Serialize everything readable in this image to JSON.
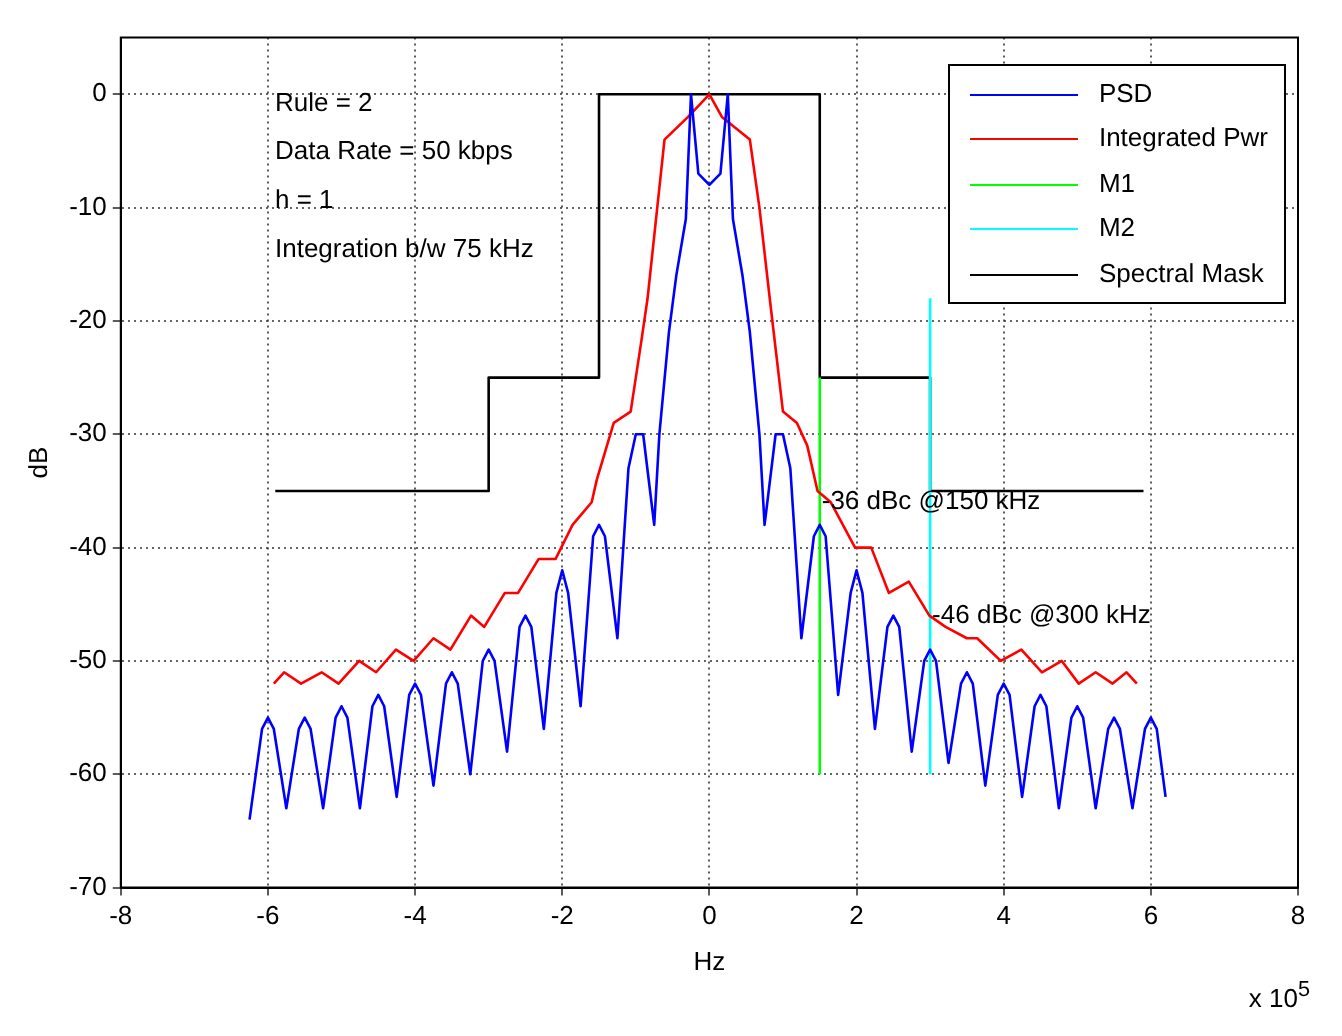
{
  "chart_data": {
    "type": "line",
    "xlabel": "Hz",
    "ylabel": "dB",
    "xlim": [
      -8,
      8
    ],
    "ylim": [
      -70,
      5
    ],
    "xticks": [
      -8,
      -6,
      -4,
      -2,
      0,
      2,
      4,
      6,
      8
    ],
    "yticks": [
      -70,
      -60,
      -50,
      -40,
      -30,
      -20,
      -10,
      0
    ],
    "grid": true,
    "legend": "top right",
    "marker": "none",
    "line_style": "solid",
    "annotations": [
      "Rule = 2",
      "Data Rate = 50 kbps",
      "h = 1",
      "Integration b/w 75 kHz",
      {
        "text": "-36 dBc @150 kHz",
        "x": 1.5,
        "y": -36
      },
      {
        "text": "-46 dBc @300 kHz",
        "x": 3,
        "y": -46
      },
      "x 10$^{5}$"
    ],
    "series": [
      {
        "name": "PSD",
        "color": "#0000ff",
        "x": [
          -6.25,
          -6.08,
          -6,
          -5.92,
          -5.75,
          -5.58,
          -5.5,
          -5.42,
          -5.25,
          -5.08,
          -5,
          -4.92,
          -4.75,
          -4.58,
          -4.5,
          -4.42,
          -4.25,
          -4.08,
          -4,
          -3.92,
          -3.75,
          -3.58,
          -3.5,
          -3.42,
          -3.25,
          -3.08,
          -3,
          -2.92,
          -2.75,
          -2.58,
          -2.5,
          -2.42,
          -2.25,
          -2.08,
          -2,
          -1.92,
          -1.75,
          -1.58,
          -1.5,
          -1.42,
          -1.25,
          -1.1,
          -1,
          -0.9,
          -0.75,
          -0.68,
          -0.55,
          -0.45,
          -0.32,
          -0.25,
          -0.15,
          0,
          0.15,
          0.25,
          0.32,
          0.45,
          0.55,
          0.68,
          0.75,
          0.9,
          1,
          1.1,
          1.25,
          1.42,
          1.5,
          1.58,
          1.75,
          1.92,
          2,
          2.08,
          2.25,
          2.42,
          2.5,
          2.58,
          2.75,
          2.92,
          3,
          3.08,
          3.25,
          3.42,
          3.5,
          3.58,
          3.75,
          3.92,
          4,
          4.08,
          4.25,
          4.42,
          4.5,
          4.58,
          4.75,
          4.92,
          5,
          5.08,
          5.25,
          5.42,
          5.5,
          5.58,
          5.75,
          5.92,
          6,
          6.08,
          6.2
        ],
        "values": [
          -64,
          -56,
          -55,
          -56,
          -63,
          -56,
          -55,
          -56,
          -63,
          -55,
          -54,
          -55,
          -63,
          -54,
          -53,
          -54,
          -62,
          -53,
          -52,
          -53,
          -61,
          -52,
          -51,
          -52,
          -60,
          -50,
          -49,
          -50,
          -58,
          -47,
          -46,
          -47,
          -56,
          -44,
          -42,
          -44,
          -54,
          -39,
          -38,
          -39,
          -48,
          -33,
          -30,
          -30,
          -38,
          -30,
          -21,
          -16,
          -11,
          0,
          -7,
          -8,
          -7,
          0,
          -11,
          -16,
          -21,
          -30,
          -38,
          -30,
          -30,
          -33,
          -48,
          -39,
          -38,
          -39,
          -53,
          -44,
          -42,
          -44,
          -56,
          -47,
          -46,
          -47,
          -58,
          -50,
          -49,
          -50,
          -59,
          -52,
          -51,
          -52,
          -61,
          -53,
          -52,
          -53,
          -62,
          -54,
          -53,
          -54,
          -63,
          -55,
          -54,
          -55,
          -63,
          -56,
          -55,
          -56,
          -63,
          -56,
          -55,
          -56,
          -62
        ]
      },
      {
        "name": "Integrated Pwr",
        "color": "#ff0000",
        "x": [
          -5.92,
          -5.78,
          -5.55,
          -5.27,
          -5.04,
          -4.76,
          -4.53,
          -4.26,
          -4.02,
          -3.75,
          -3.52,
          -3.24,
          -3.06,
          -2.78,
          -2.6,
          -2.32,
          -2.09,
          -1.86,
          -1.6,
          -1.53,
          -1.3,
          -1.07,
          -0.93,
          -0.84,
          -0.61,
          -0.29,
          0,
          0.17,
          0.55,
          0.68,
          0.82,
          1,
          1.19,
          1.33,
          1.47,
          1.65,
          1.98,
          2.2,
          2.44,
          2.71,
          2.99,
          3.21,
          3.5,
          3.64,
          3.96,
          4.24,
          4.52,
          4.79,
          5.02,
          5.25,
          5.48,
          5.67,
          5.81
        ],
        "values": [
          -52,
          -51,
          -52,
          -51,
          -52,
          -50,
          -51,
          -49,
          -50,
          -48,
          -49,
          -46,
          -47,
          -44,
          -44,
          -41,
          -41,
          -38,
          -36,
          -34,
          -29,
          -28,
          -22,
          -18,
          -4,
          -2,
          0,
          -2,
          -4,
          -10,
          -18,
          -28,
          -29,
          -31,
          -35,
          -36,
          -40,
          -40,
          -44,
          -43,
          -46,
          -47,
          -48,
          -48,
          -50,
          -49,
          -51,
          -50,
          -52,
          -51,
          -52,
          -51,
          -52
        ]
      },
      {
        "name": "M1",
        "color": "#00ff00",
        "x": [
          1.5,
          1.5
        ],
        "values": [
          -60,
          -25
        ]
      },
      {
        "name": "M2",
        "color": "#00ffff",
        "x": [
          3,
          3
        ],
        "values": [
          -60,
          -18
        ]
      },
      {
        "name": "Spectral Mask",
        "color": "#000000",
        "x": [
          -5.9,
          -3,
          -3,
          -1.5,
          -1.5,
          1.5,
          1.5,
          3,
          3,
          5.9
        ],
        "values": [
          -35,
          -35,
          -25,
          -25,
          0,
          0,
          -25,
          -25,
          -35,
          -35
        ]
      }
    ]
  }
}
